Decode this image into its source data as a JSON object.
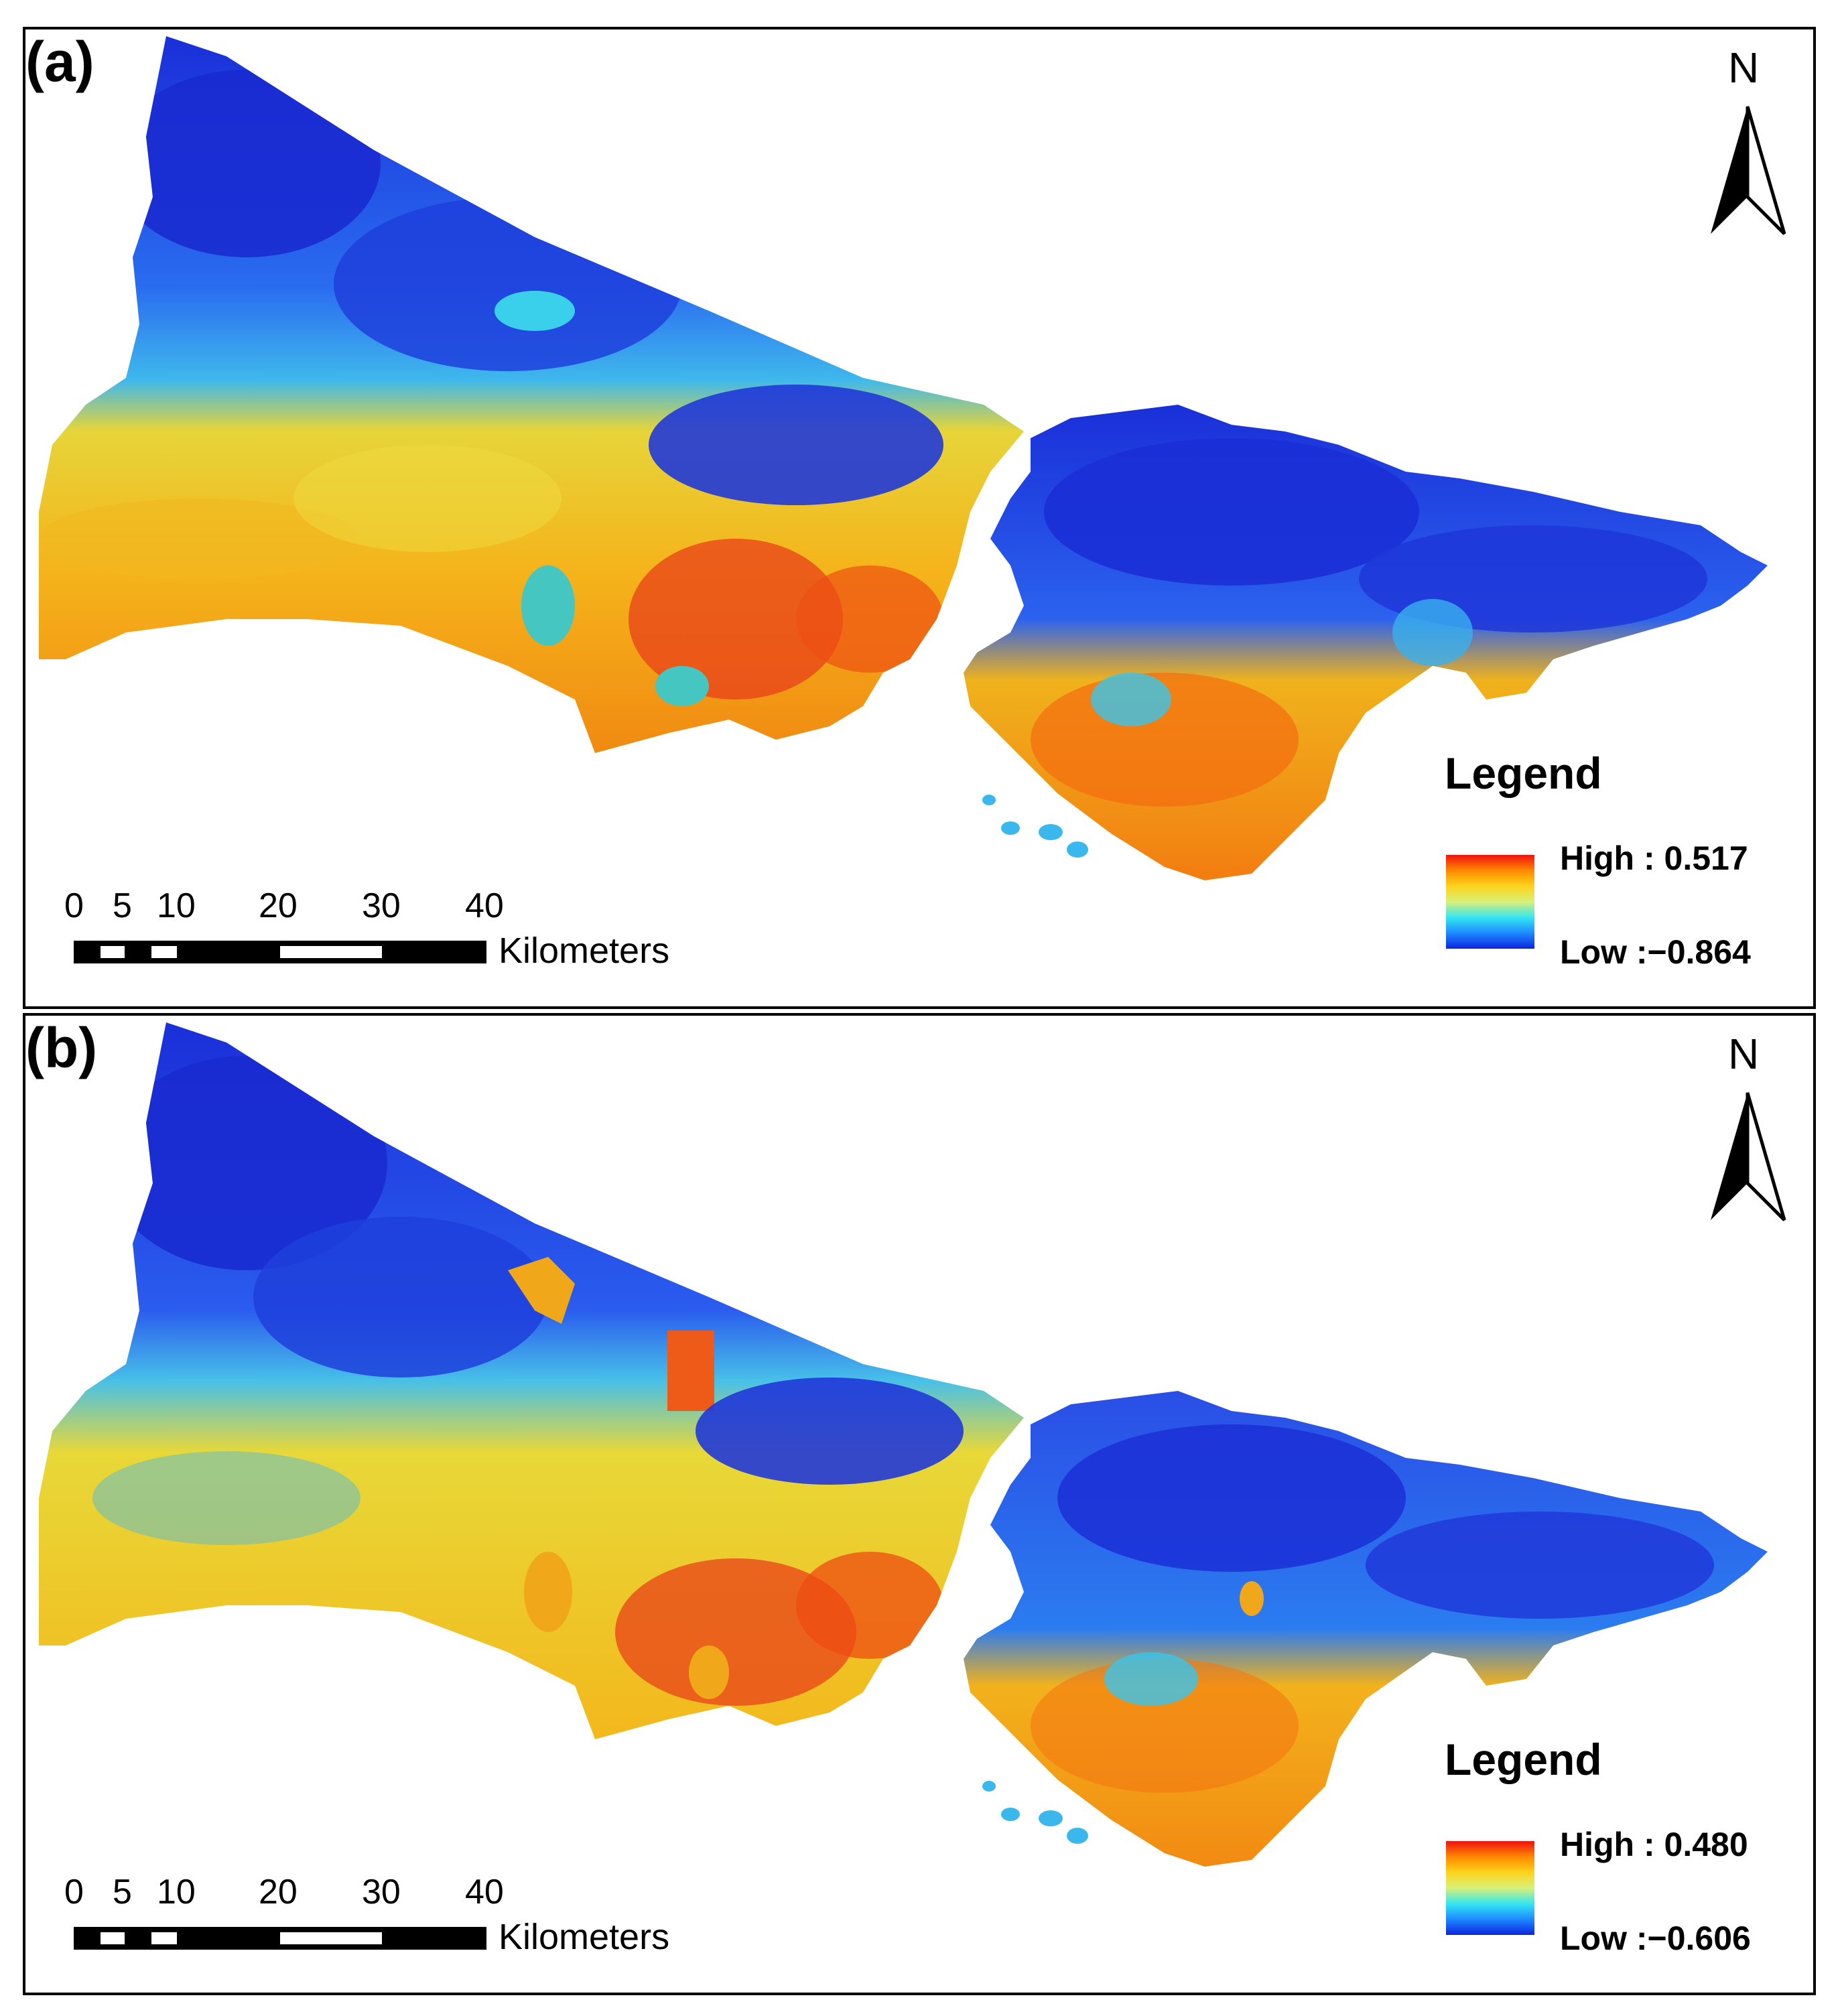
{
  "panels": [
    {
      "id": "a",
      "label": "(a)",
      "north": "N",
      "legend": {
        "title": "Legend",
        "high": "High : 0.517",
        "low": "Low :−0.864",
        "colors": [
          "#0b24e0",
          "#1e8cff",
          "#33e6f0",
          "#d9f07a",
          "#ffd21a",
          "#ff8a00",
          "#f01010"
        ]
      },
      "scalebar": {
        "ticks": [
          "0",
          "5",
          "10",
          "20",
          "30",
          "40"
        ],
        "unit": "Kilometers"
      }
    },
    {
      "id": "b",
      "label": "(b)",
      "north": "N",
      "legend": {
        "title": "Legend",
        "high": "High : 0.480",
        "low": "Low :−0.606",
        "colors": [
          "#0b24e0",
          "#1e8cff",
          "#33e6f0",
          "#d9f07a",
          "#ffd21a",
          "#ff8a00",
          "#f01010"
        ]
      },
      "scalebar": {
        "ticks": [
          "0",
          "5",
          "10",
          "20",
          "30",
          "40"
        ],
        "unit": "Kilometers"
      }
    }
  ],
  "map_colors": {
    "north_dark_blue": "#1a33d6",
    "mid_blue": "#2a6cf0",
    "cyan": "#34c8ee",
    "yellow": "#f2cf2a",
    "orange": "#f59a10",
    "red": "#e8321a"
  }
}
